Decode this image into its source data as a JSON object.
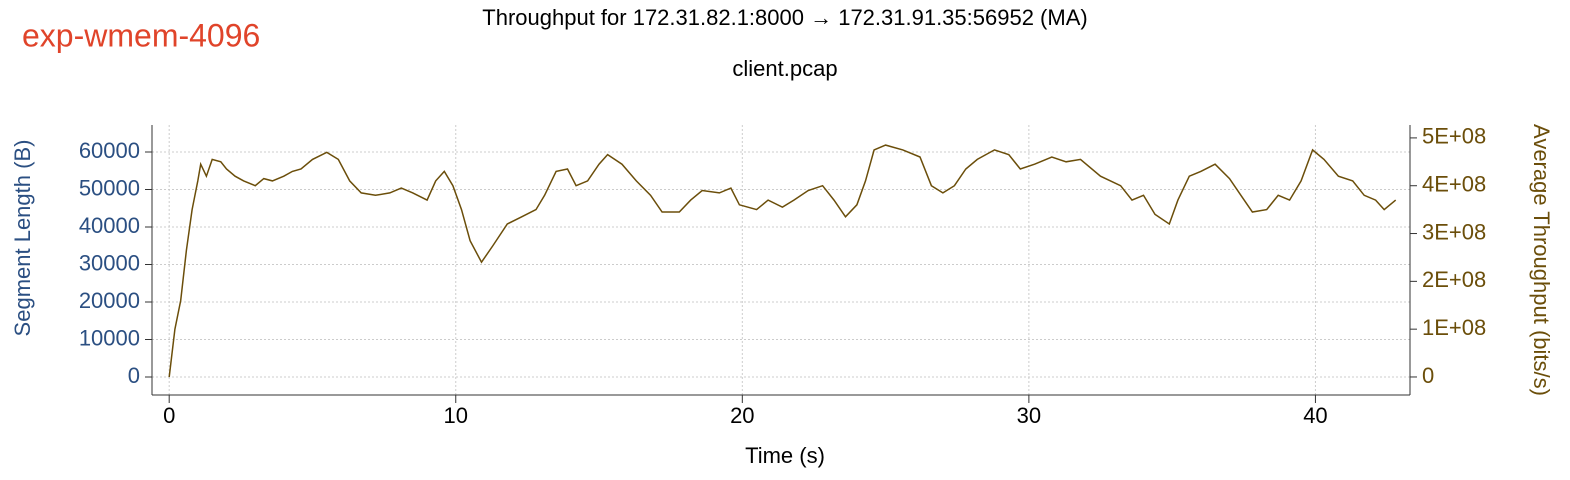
{
  "chart_data": {
    "type": "line",
    "annotation": "exp-wmem-4096",
    "title": "Throughput for 172.31.82.1:8000 → 172.31.91.35:56952 (MA)",
    "subtitle": "client.pcap",
    "xlabel": "Time (s)",
    "ylabel": "Segment Length (B)",
    "y2label": "Average Throughput (bits/s)",
    "xlim": [
      -0.6,
      43.3
    ],
    "xticks": [
      0,
      10,
      20,
      30,
      40
    ],
    "ylim": [
      -4800,
      67200
    ],
    "yticks": [
      0,
      10000,
      20000,
      30000,
      40000,
      50000,
      60000
    ],
    "y2lim": [
      -37700000,
      527000000
    ],
    "y2ticks": [
      0,
      {
        "value": 100000000,
        "label": "1E+08"
      },
      {
        "value": 200000000,
        "label": "2E+08"
      },
      {
        "value": 300000000,
        "label": "3E+08"
      },
      {
        "value": 400000000,
        "label": "4E+08"
      },
      {
        "value": 500000000,
        "label": "5E+08"
      }
    ],
    "grid": true,
    "ycolor": "#2b4f82",
    "y2color": "#6b4e0a",
    "x": [
      0,
      0.2,
      0.4,
      0.6,
      0.8,
      1.0,
      1.1,
      1.3,
      1.5,
      1.8,
      2.0,
      2.3,
      2.6,
      3.0,
      3.3,
      3.6,
      4.0,
      4.3,
      4.6,
      5.0,
      5.5,
      5.9,
      6.3,
      6.7,
      7.2,
      7.7,
      8.1,
      8.5,
      9.0,
      9.3,
      9.6,
      9.9,
      10.2,
      10.5,
      10.9,
      11.3,
      11.8,
      12.3,
      12.8,
      13.1,
      13.5,
      13.9,
      14.2,
      14.6,
      15.0,
      15.3,
      15.8,
      16.3,
      16.8,
      17.2,
      17.8,
      18.2,
      18.6,
      19.2,
      19.6,
      19.9,
      20.5,
      20.9,
      21.4,
      21.8,
      22.3,
      22.8,
      23.2,
      23.6,
      24.0,
      24.3,
      24.6,
      25.0,
      25.6,
      26.2,
      26.6,
      27.0,
      27.4,
      27.8,
      28.2,
      28.8,
      29.3,
      29.7,
      30.2,
      30.8,
      31.3,
      31.8,
      32.5,
      33.2,
      33.6,
      34.0,
      34.4,
      34.9,
      35.2,
      35.6,
      36.0,
      36.5,
      37.0,
      37.4,
      37.8,
      38.3,
      38.7,
      39.1,
      39.5,
      39.9,
      40.3,
      40.8,
      41.3,
      41.7,
      42.1,
      42.4,
      42.8
    ],
    "series": [
      {
        "color": "#6b4e0a",
        "axis": "y2",
        "values": [
          0,
          100000000.0,
          160000000.0,
          265000000.0,
          350000000.0,
          410000000.0,
          445000000.0,
          420000000.0,
          455000000.0,
          450000000.0,
          435000000.0,
          420000000.0,
          410000000.0,
          400000000.0,
          415000000.0,
          410000000.0,
          420000000.0,
          430000000.0,
          435000000.0,
          455000000.0,
          470000000.0,
          455000000.0,
          410000000.0,
          385000000.0,
          380000000.0,
          385000000.0,
          395000000.0,
          385000000.0,
          370000000.0,
          410000000.0,
          430000000.0,
          400000000.0,
          350000000.0,
          285000000.0,
          240000000.0,
          275000000.0,
          320000000.0,
          335000000.0,
          350000000.0,
          380000000.0,
          430000000.0,
          435000000.0,
          400000000.0,
          410000000.0,
          445000000.0,
          465000000.0,
          445000000.0,
          410000000.0,
          380000000.0,
          345000000.0,
          345000000.0,
          370000000.0,
          390000000.0,
          385000000.0,
          395000000.0,
          360000000.0,
          350000000.0,
          370000000.0,
          355000000.0,
          370000000.0,
          390000000.0,
          400000000.0,
          370000000.0,
          335000000.0,
          360000000.0,
          410000000.0,
          475000000.0,
          485000000.0,
          475000000.0,
          460000000.0,
          400000000.0,
          385000000.0,
          400000000.0,
          435000000.0,
          455000000.0,
          475000000.0,
          465000000.0,
          435000000.0,
          445000000.0,
          460000000.0,
          450000000.0,
          455000000.0,
          420000000.0,
          400000000.0,
          370000000.0,
          380000000.0,
          340000000.0,
          320000000.0,
          370000000.0,
          420000000.0,
          430000000.0,
          445000000.0,
          415000000.0,
          380000000.0,
          345000000.0,
          350000000.0,
          380000000.0,
          370000000.0,
          410000000.0,
          475000000.0,
          455000000.0,
          420000000.0,
          410000000.0,
          380000000.0,
          370000000.0,
          350000000.0,
          370000000.0
        ]
      }
    ]
  }
}
